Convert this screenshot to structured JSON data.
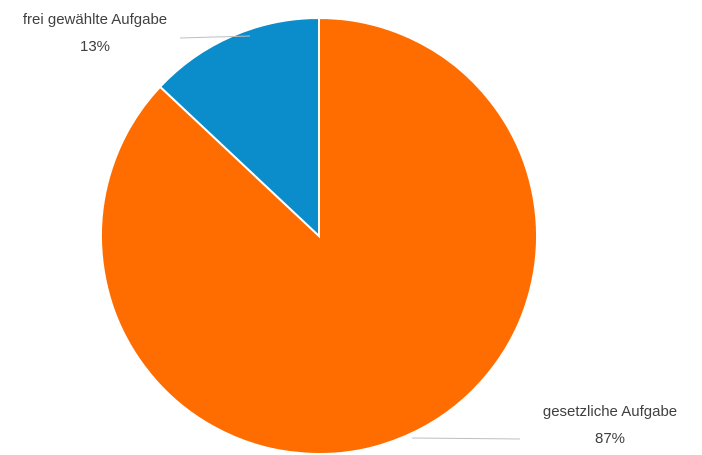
{
  "chart_data": {
    "type": "pie",
    "title": "",
    "slices": [
      {
        "label": "gesetzliche Aufgabe",
        "value": 87,
        "value_label": "87%",
        "color": "#FF6D01"
      },
      {
        "label": "frei gewählte Aufgabe",
        "value": 13,
        "value_label": "13%",
        "color": "#0B8CCB"
      }
    ],
    "legend": "none",
    "start_angle": "12 o'clock, clockwise"
  }
}
